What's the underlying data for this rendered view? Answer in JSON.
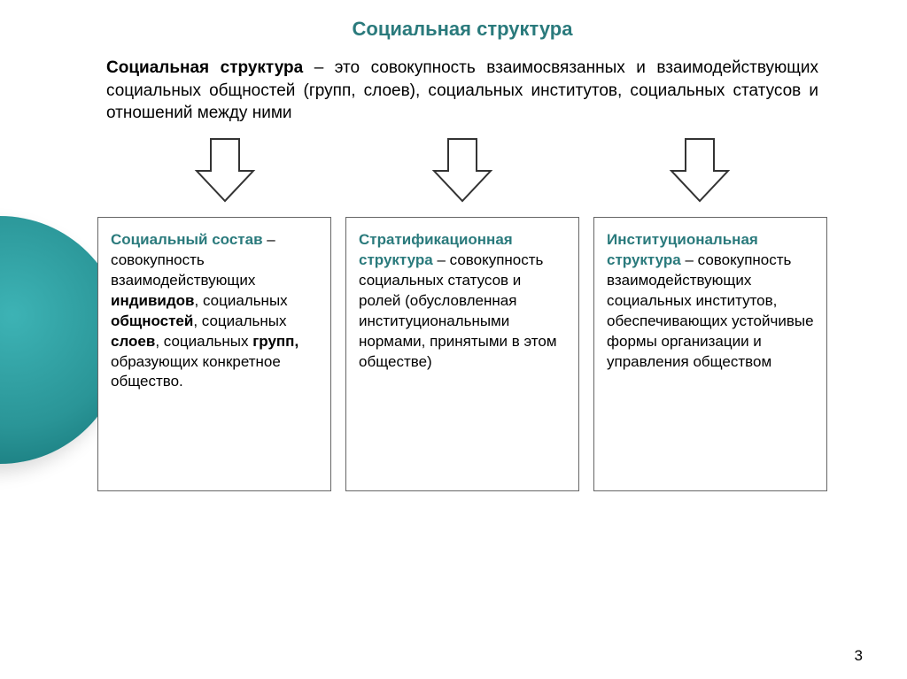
{
  "colors": {
    "title": "#2a7a7c",
    "body": "#000000",
    "heading": "#2a7a7c",
    "border": "#666666",
    "arrow_fill": "#ffffff",
    "arrow_stroke": "#333333",
    "accent_circle": "#2a9597"
  },
  "layout": {
    "arrow_width": 72,
    "arrow_height": 78,
    "box_min_height": 310,
    "title_fontsize": 22,
    "body_fontsize": 19,
    "box_fontsize": 17
  },
  "title": "Социальная структура",
  "definition": {
    "lead_term": "Социальная структура",
    "rest": " – это совокупность взаимосвязанных и взаимодействующих социальных общностей (групп, слоев), социальных институтов, социальных статусов и отношений между ними"
  },
  "boxes": [
    {
      "heading": "Социальный состав",
      "sep": " – ",
      "body_pre": "совокупность взаимодействующих ",
      "bold1": "индивидов",
      "mid1": ", социальных ",
      "bold2": "общностей",
      "mid2": ", социальных ",
      "bold3": "слоев",
      "mid3": ", социальных ",
      "bold4": "групп,",
      "tail": " образующих конкретное общество."
    },
    {
      "heading": "Стратификационная структура",
      "sep": "  – ",
      "body": "совокупность социальных статусов и ролей (обусловленная институциональными нормами, принятыми в этом обществе)"
    },
    {
      "heading": "Институциональная структура",
      "sep": "  – ",
      "body": "совокупность взаимодействующих социальных институтов, обеспечивающих устойчивые формы организации и управления обществом"
    }
  ],
  "page_number": "3"
}
